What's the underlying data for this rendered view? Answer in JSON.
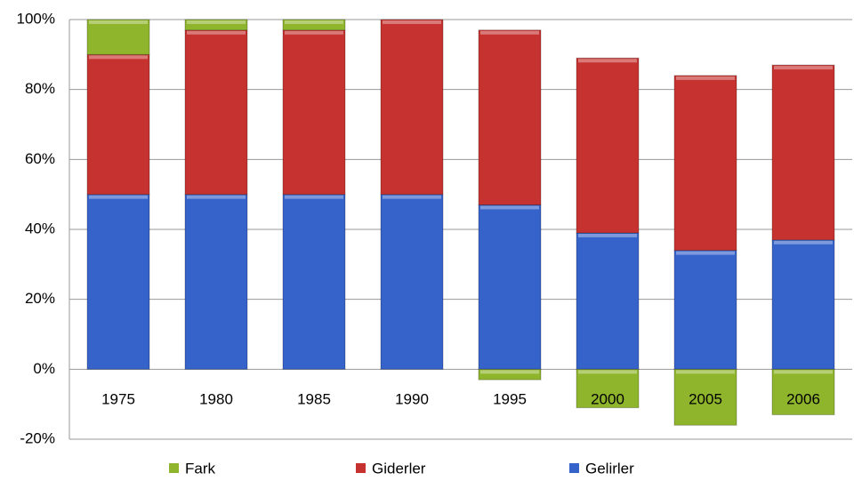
{
  "chart_data": {
    "type": "stacked_bar",
    "categories": [
      "1975",
      "1980",
      "1985",
      "1990",
      "1995",
      "2000",
      "2005",
      "2006"
    ],
    "series": [
      {
        "name": "Gelirler",
        "color": "#3563c9",
        "values": [
          50,
          50,
          50,
          50,
          47,
          39,
          34,
          37
        ]
      },
      {
        "name": "Giderler",
        "color": "#c53230",
        "values": [
          40,
          47,
          47,
          50,
          50,
          50,
          50,
          50
        ]
      },
      {
        "name": "Fark",
        "color": "#8fb52c",
        "values": [
          10,
          3,
          3,
          0,
          -3,
          -11,
          -16,
          -13
        ]
      }
    ],
    "legend_order": [
      "Fark",
      "Giderler",
      "Gelirler"
    ],
    "ylim": [
      -20,
      100
    ],
    "yticks": [
      {
        "value": -20,
        "label": "-20%"
      },
      {
        "value": 0,
        "label": "0%"
      },
      {
        "value": 20,
        "label": "20%"
      },
      {
        "value": 40,
        "label": "40%"
      },
      {
        "value": 60,
        "label": "60%"
      },
      {
        "value": 80,
        "label": "80%"
      },
      {
        "value": 100,
        "label": "100%"
      }
    ],
    "grid": true,
    "legend": "bottom"
  }
}
